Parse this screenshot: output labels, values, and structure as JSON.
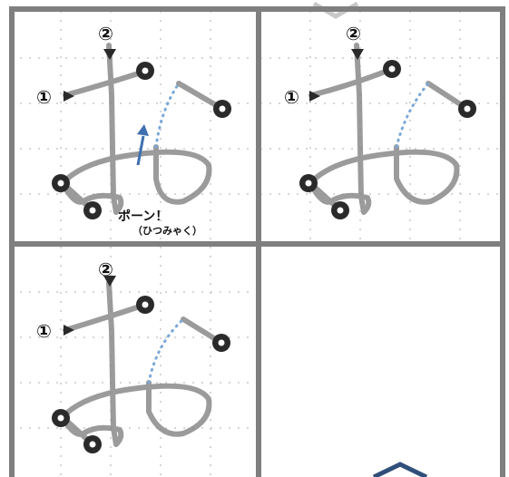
{
  "labels": {
    "stroke_one": "①",
    "stroke_two": "②",
    "pop_text": "ポーン！",
    "pop_reading": "（ひつみゃく）"
  },
  "colors": {
    "frame": "#7f7f7f",
    "grid_dots": "#c8c8c8",
    "pencil": "#8a8a8a",
    "marker": "#2a2a2a",
    "dotted_path": "#7aa8d8",
    "arrow": "#3f6fb0"
  },
  "icons": [
    "start-triangle-icon",
    "endpoint-ring-icon",
    "arrow-icon"
  ]
}
